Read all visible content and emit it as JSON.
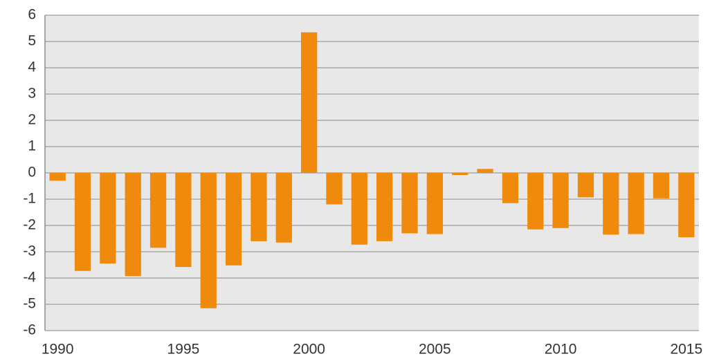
{
  "chart_data": {
    "type": "bar",
    "categories": [
      1990,
      null,
      null,
      null,
      null,
      1995,
      null,
      null,
      null,
      null,
      2000,
      null,
      null,
      null,
      null,
      2005,
      null,
      null,
      null,
      null,
      2010,
      null,
      null,
      null,
      null,
      2015
    ],
    "values": [
      -0.3,
      -3.73,
      -3.45,
      -3.93,
      -2.85,
      -3.58,
      -5.15,
      -3.52,
      -2.6,
      -2.65,
      5.35,
      -1.2,
      -2.73,
      -2.6,
      -2.3,
      -2.33,
      -0.08,
      0.15,
      -1.15,
      -2.15,
      -2.1,
      -0.93,
      -2.35,
      -2.33,
      -0.97,
      -2.45
    ],
    "color": "#ef8a0c",
    "ylim": [
      -6,
      6
    ],
    "yticks": [
      -6,
      -5,
      -4,
      -3,
      -2,
      -1,
      0,
      1,
      2,
      3,
      4,
      5,
      6
    ],
    "grid": true
  }
}
